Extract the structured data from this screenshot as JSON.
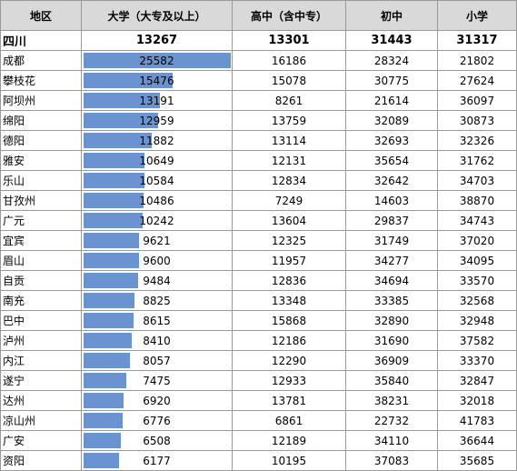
{
  "headers": [
    "地区",
    "大学（大专及以上）",
    "高中（含中专）",
    "初中",
    "小学"
  ],
  "summary": {
    "region": "四川",
    "university": "13267",
    "high": "13301",
    "middle": "31443",
    "primary": "31317"
  },
  "bar_max": 25582,
  "bar_color": "#6a93cf",
  "rows": [
    {
      "region": "成都",
      "university": "25582",
      "high": "16186",
      "middle": "28324",
      "primary": "21802"
    },
    {
      "region": "攀枝花",
      "university": "15476",
      "high": "15078",
      "middle": "30775",
      "primary": "27624"
    },
    {
      "region": "阿坝州",
      "university": "13191",
      "high": "8261",
      "middle": "21614",
      "primary": "36097"
    },
    {
      "region": "绵阳",
      "university": "12959",
      "high": "13759",
      "middle": "32089",
      "primary": "30873"
    },
    {
      "region": "德阳",
      "university": "11882",
      "high": "13114",
      "middle": "32693",
      "primary": "32326"
    },
    {
      "region": "雅安",
      "university": "10649",
      "high": "12131",
      "middle": "35654",
      "primary": "31762"
    },
    {
      "region": "乐山",
      "university": "10584",
      "high": "12834",
      "middle": "32642",
      "primary": "34703"
    },
    {
      "region": "甘孜州",
      "university": "10486",
      "high": "7249",
      "middle": "14603",
      "primary": "38870"
    },
    {
      "region": "广元",
      "university": "10242",
      "high": "13604",
      "middle": "29837",
      "primary": "34743"
    },
    {
      "region": "宜宾",
      "university": "9621",
      "high": "12325",
      "middle": "31749",
      "primary": "37020"
    },
    {
      "region": "眉山",
      "university": "9600",
      "high": "11957",
      "middle": "34277",
      "primary": "34095"
    },
    {
      "region": "自贡",
      "university": "9484",
      "high": "12836",
      "middle": "34694",
      "primary": "33570"
    },
    {
      "region": "南充",
      "university": "8825",
      "high": "13348",
      "middle": "33385",
      "primary": "32568"
    },
    {
      "region": "巴中",
      "university": "8615",
      "high": "15868",
      "middle": "32890",
      "primary": "32948"
    },
    {
      "region": "泸州",
      "university": "8410",
      "high": "12186",
      "middle": "31690",
      "primary": "37582"
    },
    {
      "region": "内江",
      "university": "8057",
      "high": "12290",
      "middle": "36909",
      "primary": "33370"
    },
    {
      "region": "遂宁",
      "university": "7475",
      "high": "12933",
      "middle": "35840",
      "primary": "32847"
    },
    {
      "region": "达州",
      "university": "6920",
      "high": "13781",
      "middle": "38231",
      "primary": "32018"
    },
    {
      "region": "凉山州",
      "university": "6776",
      "high": "6861",
      "middle": "22732",
      "primary": "41783"
    },
    {
      "region": "广安",
      "university": "6508",
      "high": "12189",
      "middle": "34110",
      "primary": "36644"
    },
    {
      "region": "资阳",
      "university": "6177",
      "high": "10195",
      "middle": "37083",
      "primary": "35685"
    }
  ]
}
